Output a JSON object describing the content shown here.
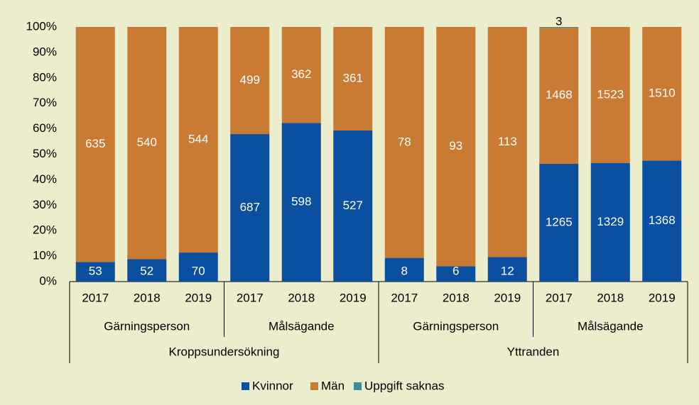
{
  "chart_data": {
    "type": "stacked_percent_bar",
    "categories": [
      "2017",
      "2018",
      "2019",
      "2017",
      "2018",
      "2019",
      "2017",
      "2018",
      "2019",
      "2017",
      "2018",
      "2019"
    ],
    "category_groups": [
      [
        "Gärningsperson",
        "Målsägande",
        "Gärningsperson",
        "Målsägande"
      ],
      [
        "Kroppsundersökning",
        "Yttranden"
      ]
    ],
    "series": [
      {
        "name": "Kvinnor",
        "color": "#0b4fa0",
        "values": [
          53,
          52,
          70,
          687,
          598,
          527,
          8,
          6,
          12,
          1265,
          1329,
          1368
        ]
      },
      {
        "name": "Män",
        "color": "#c97a33",
        "values": [
          635,
          540,
          544,
          499,
          362,
          361,
          78,
          93,
          113,
          1468,
          1523,
          1510
        ]
      },
      {
        "name": "Uppgift saknas",
        "color": "#3f8c99",
        "values": [
          null,
          null,
          null,
          null,
          null,
          null,
          null,
          null,
          null,
          3,
          null,
          null
        ]
      }
    ],
    "ylim": [
      0,
      100
    ],
    "yticks": [
      {
        "value": 0,
        "label": "0%"
      },
      {
        "value": 10,
        "label": "10%"
      },
      {
        "value": 20,
        "label": "20%"
      },
      {
        "value": 30,
        "label": "30%"
      },
      {
        "value": 40,
        "label": "40%"
      },
      {
        "value": 50,
        "label": "50%"
      },
      {
        "value": 60,
        "label": "60%"
      },
      {
        "value": 70,
        "label": "70%"
      },
      {
        "value": 80,
        "label": "80%"
      },
      {
        "value": 90,
        "label": "90%"
      },
      {
        "value": 100,
        "label": "100%"
      }
    ],
    "legend": "bottom"
  }
}
